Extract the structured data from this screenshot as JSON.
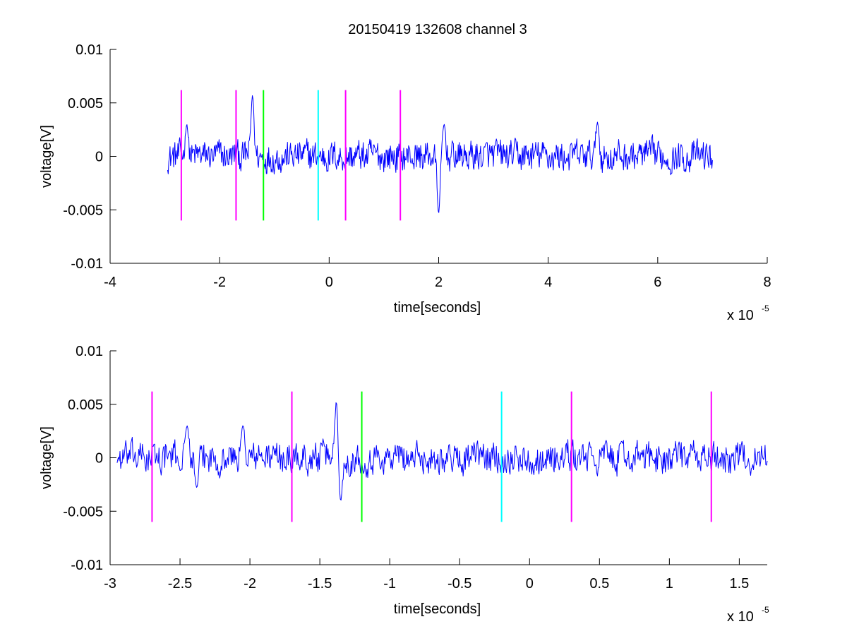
{
  "figure_title": "20150419 132608 channel 3",
  "chart_data": [
    {
      "type": "line",
      "xlabel": "time[seconds]",
      "ylabel": "voltage[V]",
      "x_exponent_label": "x 10",
      "x_exponent_power": "-5",
      "xlim": [
        -4,
        8
      ],
      "ylim": [
        -0.01,
        0.01
      ],
      "xticks": [
        -4,
        -2,
        0,
        2,
        4,
        6,
        8
      ],
      "xtick_labels": [
        "-4",
        "-2",
        "0",
        "2",
        "4",
        "6",
        "8"
      ],
      "yticks": [
        -0.01,
        -0.005,
        0,
        0.005,
        0.01
      ],
      "ytick_labels": [
        "-0.01",
        "-0.005",
        "0",
        "0.005",
        "0.01"
      ],
      "grid": false,
      "series": [
        {
          "color": "#0000ff",
          "x_range": [
            -2.95,
            7.0
          ],
          "approx_amplitude": 0.0025,
          "notable_peaks": [
            {
              "x": -1.4,
              "y": 0.0057
            },
            {
              "x": 2.0,
              "y": -0.0053
            },
            {
              "x": 4.9,
              "y": 0.0032
            },
            {
              "x": 2.1,
              "y": 0.003
            },
            {
              "x": -2.6,
              "y": 0.003
            }
          ]
        }
      ],
      "markers": [
        {
          "x": -2.7,
          "color": "#ff00ff",
          "y_range": [
            -0.006,
            0.0062
          ]
        },
        {
          "x": -1.7,
          "color": "#ff00ff",
          "y_range": [
            -0.006,
            0.0062
          ]
        },
        {
          "x": -1.2,
          "color": "#00ff00",
          "y_range": [
            -0.006,
            0.0062
          ]
        },
        {
          "x": -0.2,
          "color": "#00ffff",
          "y_range": [
            -0.006,
            0.0062
          ]
        },
        {
          "x": 0.3,
          "color": "#ff00ff",
          "y_range": [
            -0.006,
            0.0062
          ]
        },
        {
          "x": 1.3,
          "color": "#ff00ff",
          "y_range": [
            -0.006,
            0.0062
          ]
        }
      ]
    },
    {
      "type": "line",
      "xlabel": "time[seconds]",
      "ylabel": "voltage[V]",
      "x_exponent_label": "x 10",
      "x_exponent_power": "-5",
      "xlim": [
        -3.0,
        1.7
      ],
      "ylim": [
        -0.01,
        0.01
      ],
      "xticks": [
        -3,
        -2.5,
        -2,
        -1.5,
        -1,
        -0.5,
        0,
        0.5,
        1,
        1.5
      ],
      "xtick_labels": [
        "-3",
        "-2.5",
        "-2",
        "-1.5",
        "-1",
        "-0.5",
        "0",
        "0.5",
        "1",
        "1.5"
      ],
      "yticks": [
        -0.01,
        -0.005,
        0,
        0.005,
        0.01
      ],
      "ytick_labels": [
        "-0.01",
        "-0.005",
        "0",
        "0.005",
        "0.01"
      ],
      "grid": false,
      "series": [
        {
          "color": "#0000ff",
          "x_range": [
            -2.95,
            1.7
          ],
          "approx_amplitude": 0.0025,
          "notable_peaks": [
            {
              "x": -1.38,
              "y": 0.0057
            },
            {
              "x": -1.35,
              "y": -0.004
            },
            {
              "x": -2.45,
              "y": 0.003
            },
            {
              "x": -2.05,
              "y": 0.003
            },
            {
              "x": -2.38,
              "y": -0.0028
            }
          ]
        }
      ],
      "markers": [
        {
          "x": -2.7,
          "color": "#ff00ff",
          "y_range": [
            -0.006,
            0.0062
          ]
        },
        {
          "x": -1.7,
          "color": "#ff00ff",
          "y_range": [
            -0.006,
            0.0062
          ]
        },
        {
          "x": -1.2,
          "color": "#00ff00",
          "y_range": [
            -0.006,
            0.0062
          ]
        },
        {
          "x": -0.2,
          "color": "#00ffff",
          "y_range": [
            -0.006,
            0.0062
          ]
        },
        {
          "x": 0.3,
          "color": "#ff00ff",
          "y_range": [
            -0.006,
            0.0062
          ]
        },
        {
          "x": 1.3,
          "color": "#ff00ff",
          "y_range": [
            -0.006,
            0.0062
          ]
        }
      ]
    }
  ]
}
